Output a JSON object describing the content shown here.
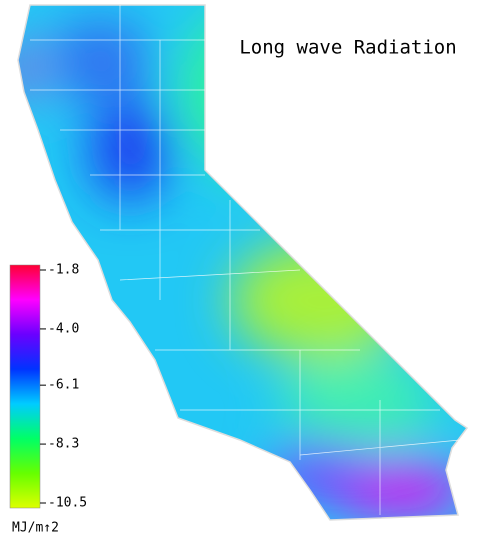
{
  "map": {
    "title": "Long wave Radiation",
    "colorbar": {
      "range": [
        -1.8,
        -10.5
      ],
      "ticks": [
        -1.8,
        {
          "value": -4,
          "label": "-4.0"
        },
        -6.1,
        -8.3,
        -10.5
      ],
      "colors": [
        "#ff0033",
        "#ff00ff",
        "#6a00ff",
        "#0033ff",
        "#00ccff",
        "#00ff66",
        "#66ff00",
        "#ddff00"
      ],
      "unit": "MJ/m↑2"
    }
  }
}
